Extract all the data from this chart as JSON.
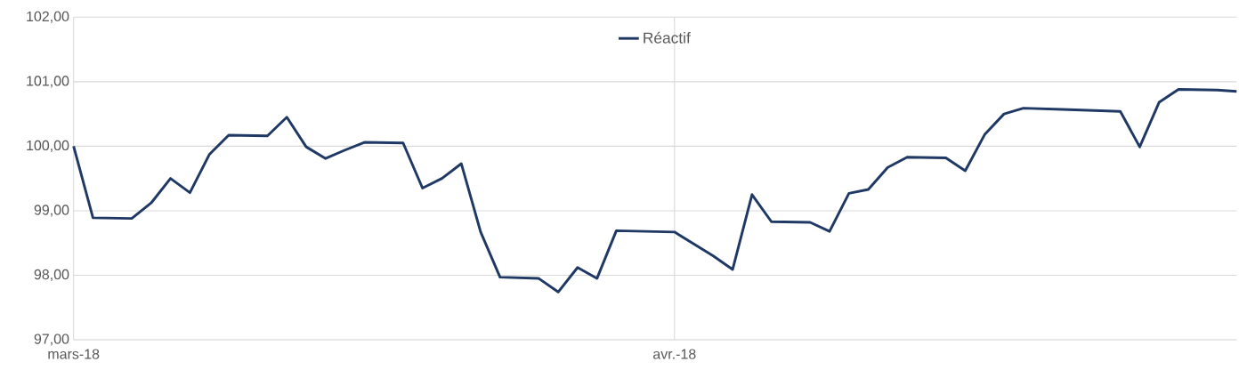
{
  "chart_data": {
    "type": "line",
    "x": [
      "2018-03-01",
      "2018-03-02",
      "2018-03-04",
      "2018-03-05",
      "2018-03-06",
      "2018-03-07",
      "2018-03-08",
      "2018-03-09",
      "2018-03-11",
      "2018-03-12",
      "2018-03-13",
      "2018-03-14",
      "2018-03-15",
      "2018-03-16",
      "2018-03-18",
      "2018-03-19",
      "2018-03-20",
      "2018-03-21",
      "2018-03-22",
      "2018-03-23",
      "2018-03-25",
      "2018-03-26",
      "2018-03-27",
      "2018-03-28",
      "2018-03-29",
      "2018-04-01",
      "2018-04-03",
      "2018-04-04",
      "2018-04-05",
      "2018-04-06",
      "2018-04-08",
      "2018-04-09",
      "2018-04-10",
      "2018-04-11",
      "2018-04-12",
      "2018-04-13",
      "2018-04-15",
      "2018-04-16",
      "2018-04-17",
      "2018-04-18",
      "2018-04-19",
      "2018-04-21",
      "2018-04-24",
      "2018-04-25",
      "2018-04-26",
      "2018-04-27",
      "2018-04-29",
      "2018-04-30"
    ],
    "series": [
      {
        "name": "Réactif",
        "color": "#1f3864",
        "values": [
          100.0,
          98.89,
          98.88,
          99.12,
          99.5,
          99.28,
          99.87,
          100.17,
          100.16,
          100.45,
          99.99,
          99.81,
          99.94,
          100.06,
          100.05,
          99.35,
          99.5,
          99.73,
          98.67,
          97.97,
          97.95,
          97.74,
          98.12,
          97.95,
          98.69,
          98.67,
          98.3,
          98.09,
          99.25,
          98.83,
          98.82,
          98.68,
          99.27,
          99.33,
          99.67,
          99.83,
          99.82,
          99.62,
          100.18,
          100.5,
          100.59,
          100.57,
          100.54,
          99.99,
          100.68,
          100.88,
          100.87,
          100.85
        ]
      }
    ],
    "xlim": [
      "2018-03-01",
      "2018-04-30"
    ],
    "xticks": [
      {
        "value": "2018-03-01",
        "label": "mars-18"
      },
      {
        "value": "2018-04-01",
        "label": "avr.-18"
      }
    ],
    "ylim": [
      97,
      102
    ],
    "yticks": [
      {
        "value": 97,
        "label": "97,00"
      },
      {
        "value": 98,
        "label": "98,00"
      },
      {
        "value": 99,
        "label": "99,00"
      },
      {
        "value": 100,
        "label": "100,00"
      },
      {
        "value": 101,
        "label": "101,00"
      },
      {
        "value": 102,
        "label": "102,00"
      }
    ],
    "grid": true,
    "legend": "top",
    "marker": "none",
    "line_style": "solid"
  }
}
